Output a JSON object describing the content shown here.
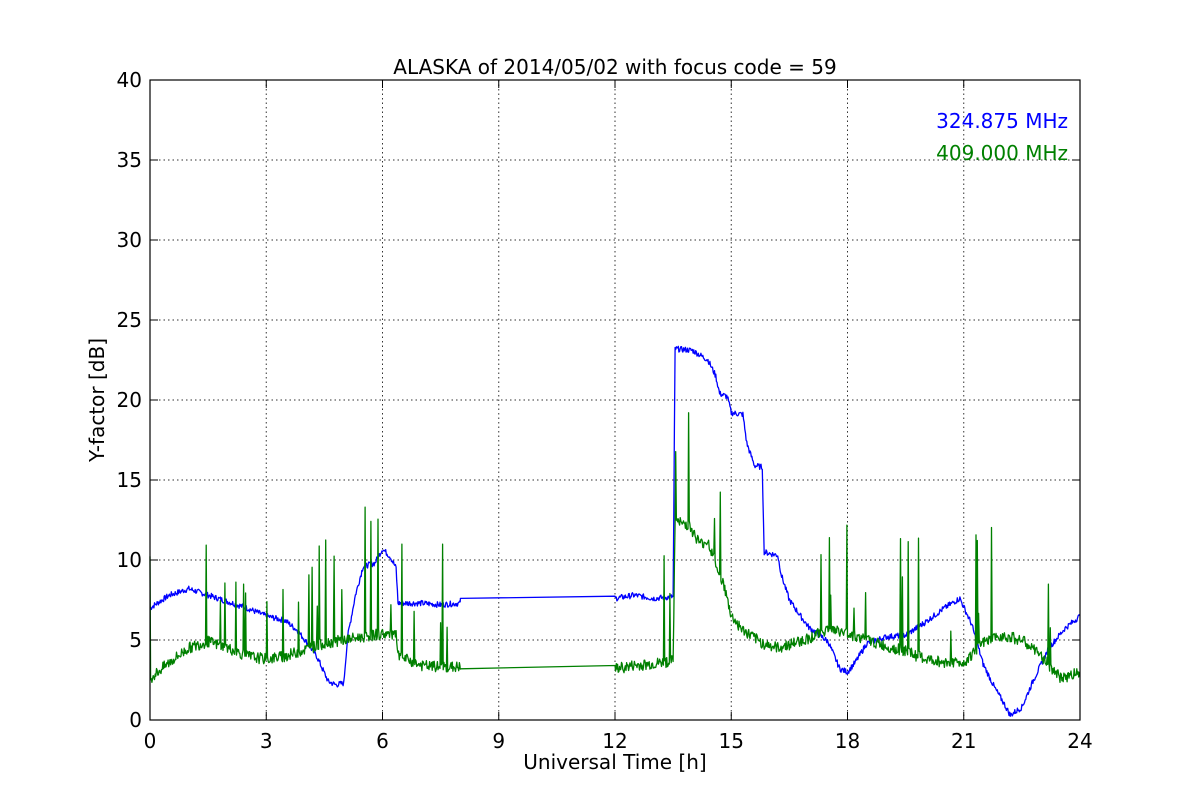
{
  "chart_data": {
    "type": "line",
    "title": "ALASKA of 2014/05/02 with focus code = 59",
    "xlabel": "Universal Time [h]",
    "ylabel": "Y-factor [dB]",
    "xlim": [
      0,
      24
    ],
    "ylim": [
      0,
      40
    ],
    "xticks": [
      0,
      3,
      6,
      9,
      12,
      15,
      18,
      21,
      24
    ],
    "yticks": [
      0,
      5,
      10,
      15,
      20,
      25,
      30,
      35,
      40
    ],
    "grid": true,
    "legend_position": "top-right",
    "series": [
      {
        "name": "324.875 MHz",
        "color": "#0000ff",
        "x": [
          0,
          0.5,
          1.0,
          1.5,
          2.0,
          2.5,
          3.0,
          3.5,
          3.8,
          4.0,
          4.3,
          4.6,
          4.8,
          5.0,
          5.1,
          5.3,
          5.5,
          5.8,
          6.0,
          6.2,
          6.35,
          6.4,
          7.0,
          7.5,
          8.0,
          8.01,
          12.0,
          12.5,
          13.0,
          13.5,
          13.55,
          14.0,
          14.4,
          14.6,
          14.7,
          14.9,
          15.0,
          15.3,
          15.4,
          15.6,
          15.8,
          15.85,
          16.0,
          16.2,
          16.3,
          16.5,
          16.7,
          17.0,
          17.5,
          17.8,
          18.0,
          18.2,
          18.5,
          19.0,
          19.5,
          20.0,
          20.5,
          20.9,
          21.2,
          21.5,
          21.8,
          22.0,
          22.2,
          22.5,
          22.8,
          23.2,
          23.6,
          24.0
        ],
        "y": [
          7.0,
          7.8,
          8.2,
          7.8,
          7.4,
          7.0,
          6.5,
          6.2,
          5.6,
          5.0,
          4.0,
          2.4,
          2.2,
          2.3,
          5.2,
          7.8,
          9.6,
          9.8,
          10.7,
          10.2,
          9.5,
          7.3,
          7.3,
          7.2,
          7.3,
          7.6,
          7.6,
          7.8,
          7.6,
          7.7,
          23.2,
          23.1,
          22.5,
          21.5,
          20.4,
          20.2,
          19.2,
          19.1,
          17.3,
          15.9,
          15.8,
          10.5,
          10.4,
          10.3,
          9.0,
          7.5,
          6.8,
          5.8,
          4.9,
          3.2,
          3.0,
          3.6,
          4.8,
          5.2,
          5.3,
          6.1,
          7.0,
          7.6,
          6.0,
          3.5,
          2.0,
          1.2,
          0.3,
          0.8,
          2.5,
          4.5,
          5.7,
          6.5
        ]
      },
      {
        "name": "409.000 MHz",
        "color": "#008000",
        "x": [
          0,
          0.5,
          1.0,
          1.5,
          2.0,
          2.5,
          3.0,
          3.5,
          4.0,
          4.5,
          5.0,
          5.5,
          6.0,
          6.35,
          6.4,
          7.0,
          7.5,
          8.0,
          8.01,
          12.0,
          12.5,
          13.0,
          13.5,
          13.55,
          13.9,
          14.2,
          14.4,
          14.5,
          14.8,
          15.0,
          15.3,
          15.8,
          16.2,
          16.6,
          17.0,
          17.5,
          18.0,
          18.5,
          19.0,
          19.5,
          20.0,
          20.5,
          21.0,
          21.5,
          22.0,
          22.5,
          23.0,
          23.5,
          24.0
        ],
        "y": [
          2.6,
          3.6,
          4.5,
          4.9,
          4.5,
          4.0,
          3.8,
          4.0,
          4.4,
          4.8,
          5.0,
          5.2,
          5.4,
          5.3,
          4.0,
          3.4,
          3.3,
          3.3,
          3.2,
          3.2,
          3.4,
          3.5,
          3.7,
          12.4,
          12.2,
          11.0,
          11.2,
          10.4,
          8.5,
          6.5,
          5.6,
          4.8,
          4.5,
          4.8,
          5.1,
          5.7,
          5.4,
          5.0,
          4.6,
          4.3,
          3.8,
          3.6,
          3.6,
          4.8,
          5.3,
          5.0,
          4.0,
          2.6,
          3.0
        ]
      }
    ]
  }
}
